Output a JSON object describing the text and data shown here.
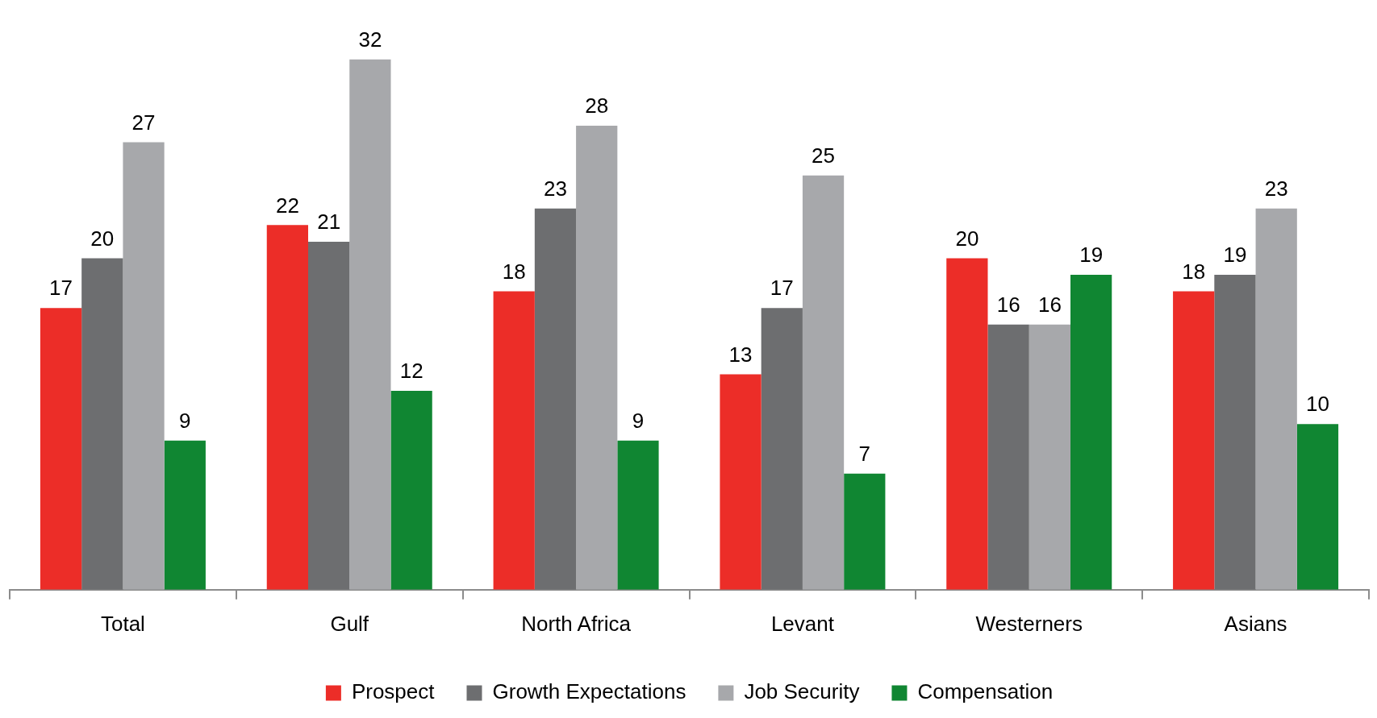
{
  "chart_data": {
    "type": "bar",
    "categories": [
      "Total",
      "Gulf",
      "North Africa",
      "Levant",
      "Westerners",
      "Asians"
    ],
    "series": [
      {
        "name": "Prospect",
        "color": "#ec2d28",
        "values": [
          17,
          22,
          18,
          13,
          20,
          18
        ]
      },
      {
        "name": "Growth Expectations",
        "color": "#6d6e70",
        "values": [
          20,
          21,
          23,
          17,
          16,
          19
        ]
      },
      {
        "name": "Job Security",
        "color": "#a7a8ab",
        "values": [
          27,
          32,
          28,
          25,
          16,
          23
        ]
      },
      {
        "name": "Compensation",
        "color": "#108632",
        "values": [
          9,
          12,
          9,
          7,
          19,
          10
        ]
      }
    ],
    "data_labels": true,
    "legend": "bottom"
  }
}
